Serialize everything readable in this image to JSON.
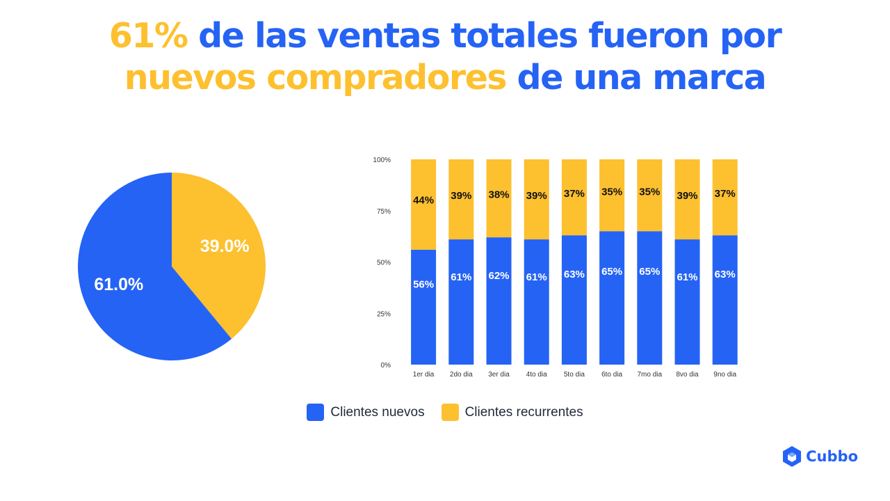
{
  "headline": {
    "line1_highlight": "61%",
    "line1_rest": "de las ventas totales fueron por",
    "line2_highlight": "nuevos compradores",
    "line2_rest": "de una marca"
  },
  "colors": {
    "blue": "#2563f5",
    "yellow": "#fdc02f",
    "brand": "#2563f5"
  },
  "legend": {
    "nuevos": "Clientes nuevos",
    "recurrentes": "Clientes recurrentes"
  },
  "logo": {
    "text": "Cubbo",
    "icon": "cube-icon"
  },
  "chart_data": [
    {
      "type": "pie",
      "slices": [
        {
          "name": "Clientes nuevos",
          "value": 61.0,
          "label": "61.0%"
        },
        {
          "name": "Clientes recurrentes",
          "value": 39.0,
          "label": "39.0%"
        }
      ]
    },
    {
      "type": "bar",
      "stacked": true,
      "categories": [
        "1er dia",
        "2do dia",
        "3er dia",
        "4to dia",
        "5to dia",
        "6to dia",
        "7mo dia",
        "8vo dia",
        "9no dia"
      ],
      "series": [
        {
          "name": "Clientes nuevos",
          "values": [
            56,
            61,
            62,
            61,
            63,
            65,
            65,
            61,
            63
          ]
        },
        {
          "name": "Clientes recurrentes",
          "values": [
            44,
            39,
            38,
            39,
            37,
            35,
            35,
            39,
            37
          ]
        }
      ],
      "yticks": [
        "0%",
        "25%",
        "50%",
        "75%",
        "100%"
      ],
      "ylim": [
        0,
        100
      ]
    }
  ]
}
